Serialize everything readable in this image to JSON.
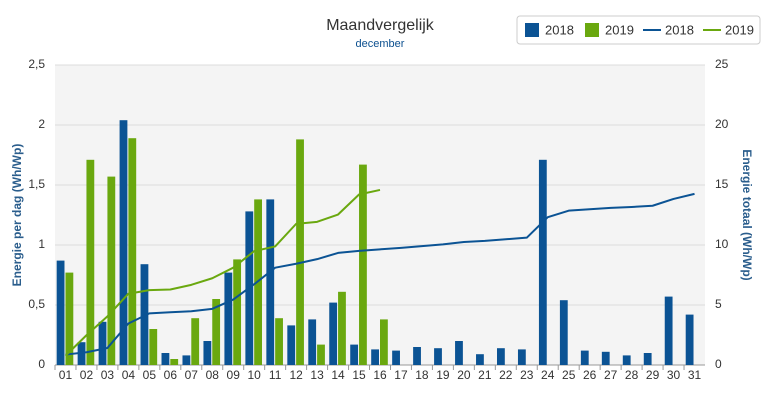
{
  "chart_data": {
    "type": "combo",
    "title": "Maandvergelijk",
    "subtitle": "december",
    "ylabel": "Energie per dag (Wh/Wp)",
    "y2label": "Energie totaal (Wh/Wp)",
    "categories": [
      "01",
      "02",
      "03",
      "04",
      "05",
      "06",
      "07",
      "08",
      "09",
      "10",
      "11",
      "12",
      "13",
      "14",
      "15",
      "16",
      "17",
      "18",
      "19",
      "20",
      "21",
      "22",
      "23",
      "24",
      "25",
      "26",
      "27",
      "28",
      "29",
      "30",
      "31"
    ],
    "ylim": [
      0,
      2.5
    ],
    "yticks": [
      0,
      {
        "value": 0.5,
        "label": "0,5"
      },
      1,
      {
        "value": 1.5,
        "label": "1,5"
      },
      2,
      {
        "value": 2.5,
        "label": "2,5"
      }
    ],
    "y2lim": [
      0,
      25
    ],
    "y2ticks": [
      0,
      5,
      10,
      15,
      20,
      25
    ],
    "grid": true,
    "legend": "top-right",
    "series": [
      {
        "name": "2018",
        "type": "bar",
        "color": "#0b5394",
        "values": [
          0.87,
          0.19,
          0.36,
          2.04,
          0.84,
          0.1,
          0.08,
          0.2,
          0.77,
          1.28,
          1.38,
          0.33,
          0.38,
          0.52,
          0.17,
          0.13,
          0.12,
          0.15,
          0.14,
          0.2,
          0.09,
          0.14,
          0.13,
          1.71,
          0.54,
          0.12,
          0.11,
          0.08,
          0.1,
          0.57,
          0.42
        ]
      },
      {
        "name": "2019",
        "type": "bar",
        "color": "#6aa80f",
        "values": [
          0.77,
          1.71,
          1.57,
          1.89,
          0.3,
          0.05,
          0.39,
          0.55,
          0.88,
          1.38,
          0.39,
          1.88,
          0.17,
          0.61,
          1.67,
          0.38,
          null,
          null,
          null,
          null,
          null,
          null,
          null,
          null,
          null,
          null,
          null,
          null,
          null,
          null,
          null
        ]
      },
      {
        "name": "2018",
        "type": "line",
        "axis": "y2",
        "color": "#0b5394",
        "values": [
          0.87,
          1.06,
          1.42,
          3.46,
          4.3,
          4.4,
          4.48,
          4.68,
          5.45,
          6.73,
          8.11,
          8.44,
          8.82,
          9.34,
          9.51,
          9.64,
          9.76,
          9.91,
          10.05,
          10.25,
          10.34,
          10.48,
          10.61,
          12.32,
          12.86,
          12.98,
          13.09,
          13.17,
          13.27,
          13.84,
          14.26
        ]
      },
      {
        "name": "2019",
        "type": "line",
        "axis": "y2",
        "color": "#6aa80f",
        "values": [
          0.77,
          2.48,
          4.05,
          5.94,
          6.24,
          6.29,
          6.68,
          7.23,
          8.11,
          9.49,
          9.88,
          11.76,
          11.93,
          12.54,
          14.21,
          14.59,
          null,
          null,
          null,
          null,
          null,
          null,
          null,
          null,
          null,
          null,
          null,
          null,
          null,
          null,
          null
        ]
      }
    ]
  }
}
